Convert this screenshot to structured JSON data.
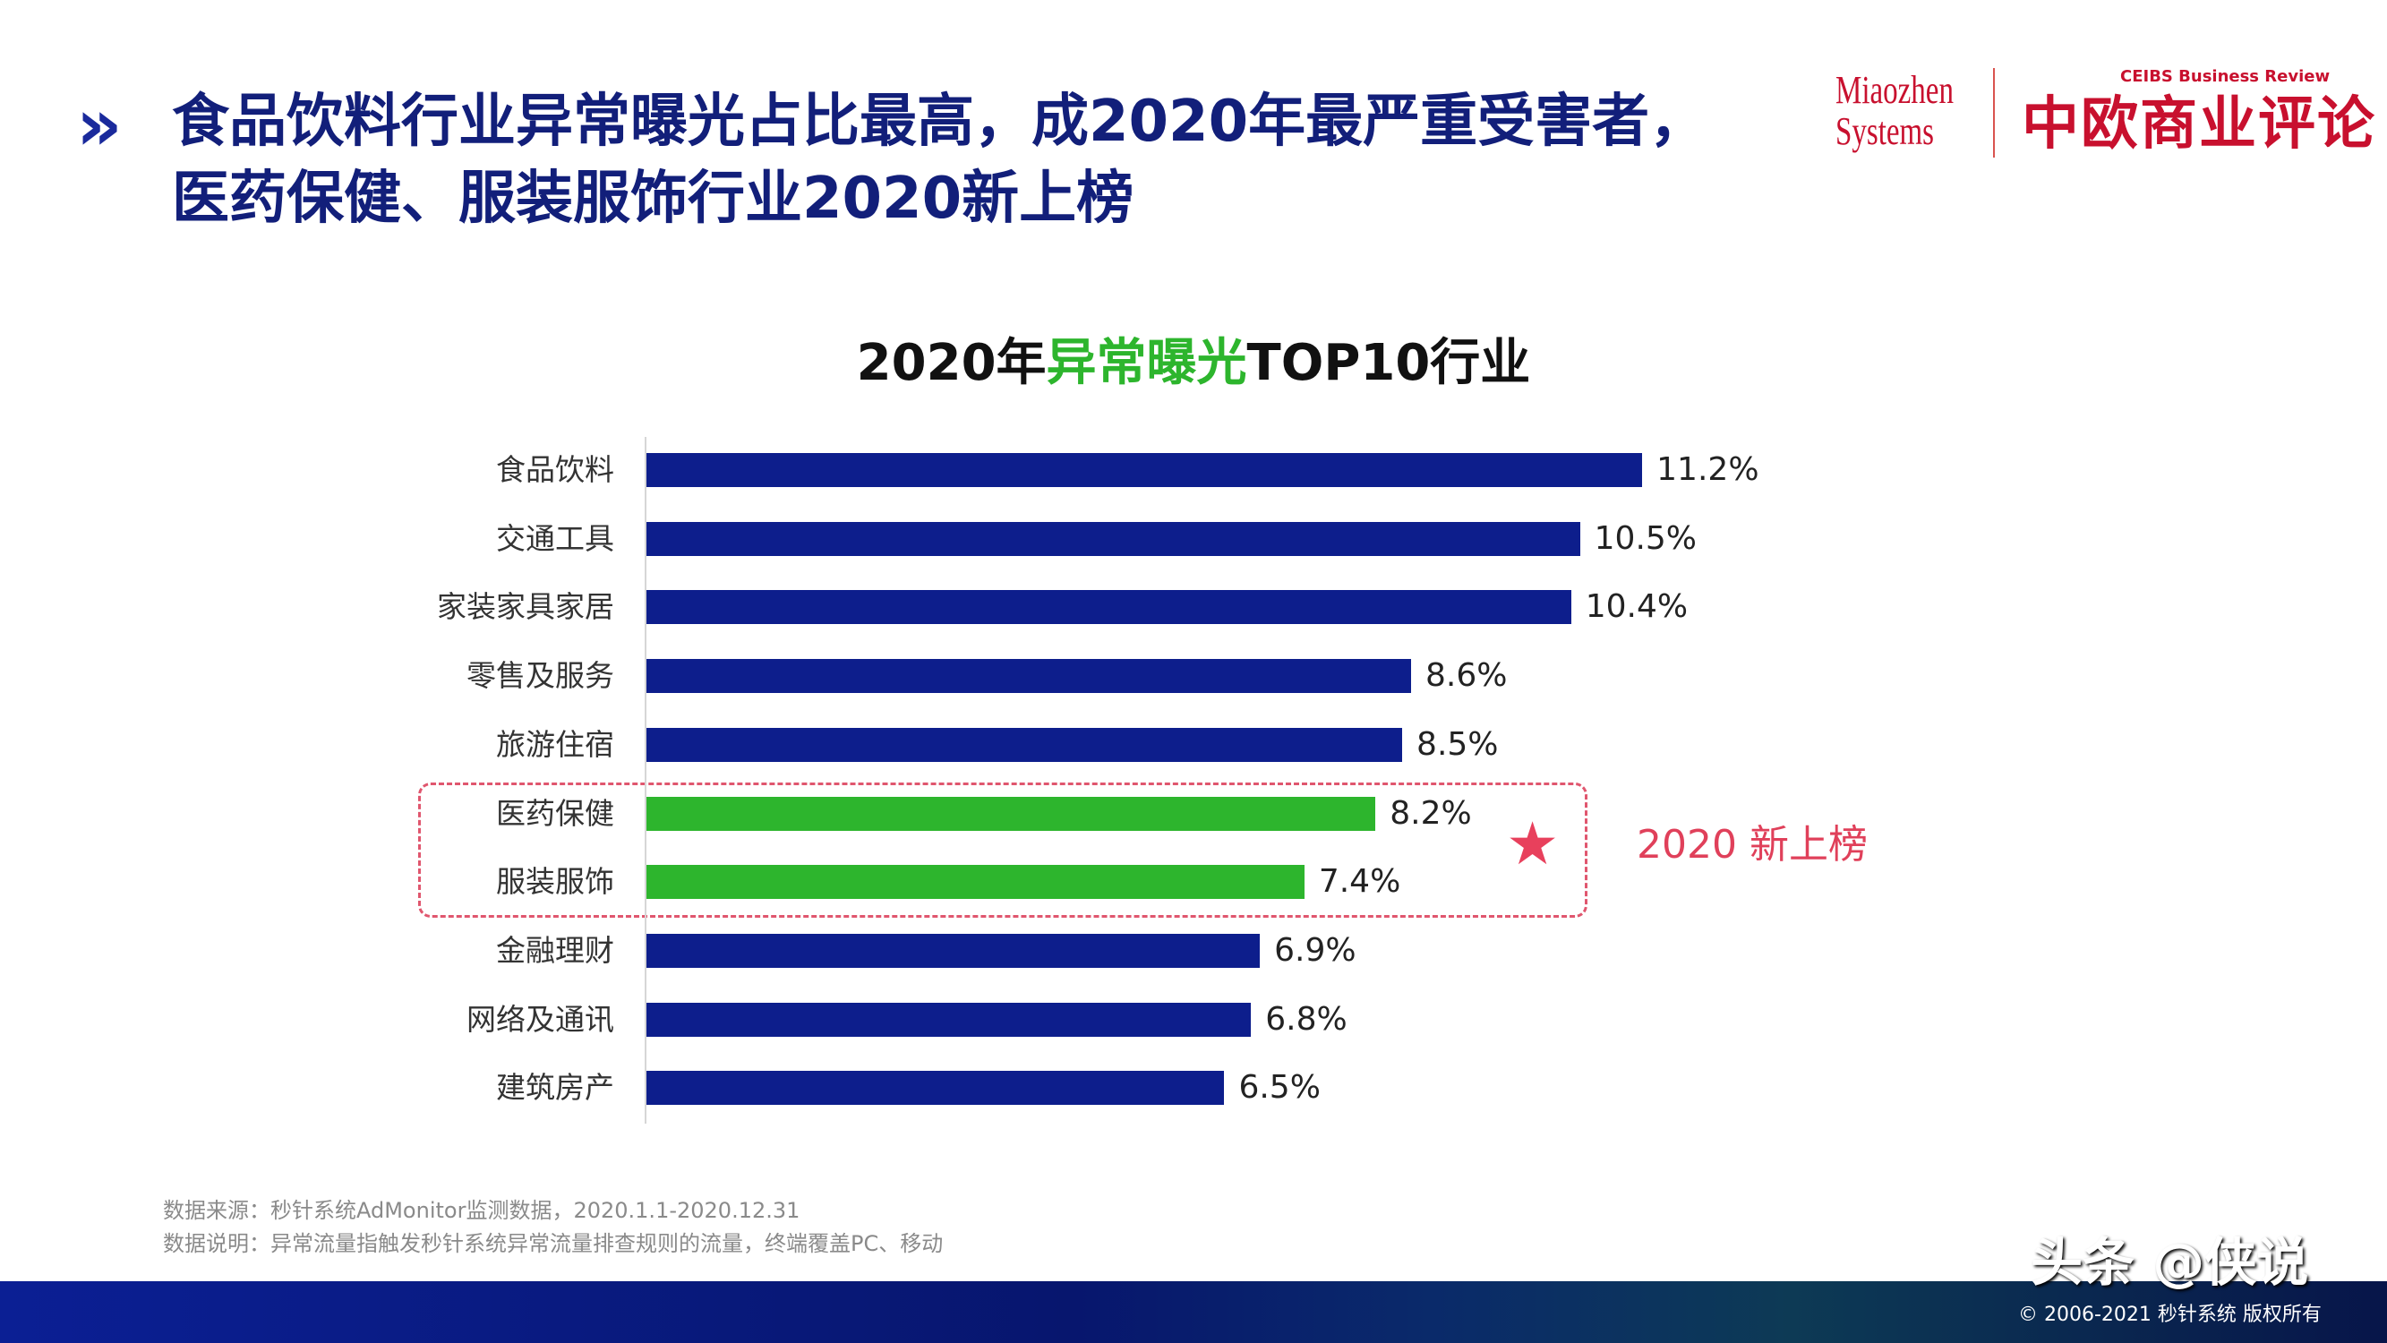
{
  "header": {
    "icon": "double-chevron-right-icon",
    "title_line1": "食品饮料行业异常曝光占比最高，成2020年最严重受害者，",
    "title_line2": "医药保健、服装服饰行业2020新上榜"
  },
  "logos": {
    "miaozhen_line1": "Miaozhen",
    "miaozhen_line2": "Systems",
    "ceibs_en": "CEIBS Business Review",
    "ceibs_cn": "中欧商业评论"
  },
  "chart_data": {
    "type": "bar",
    "orientation": "horizontal",
    "title_parts": [
      "2020年",
      "异常曝光",
      "TOP10行业"
    ],
    "categories": [
      "食品饮料",
      "交通工具",
      "家装家具家居",
      "零售及服务",
      "旅游住宿",
      "医药保健",
      "服装服饰",
      "金融理财",
      "网络及通讯",
      "建筑房产"
    ],
    "values": [
      11.2,
      10.5,
      10.4,
      8.6,
      8.5,
      8.2,
      7.4,
      6.9,
      6.8,
      6.5
    ],
    "labels": [
      "11.2%",
      "10.5%",
      "10.4%",
      "8.6%",
      "8.5%",
      "8.2%",
      "7.4%",
      "6.9%",
      "6.8%",
      "6.5%"
    ],
    "highlight": [
      false,
      false,
      false,
      false,
      false,
      true,
      true,
      false,
      false,
      false
    ],
    "unit": "%",
    "grid": false,
    "colors": {
      "default": "#0d1e8c",
      "highlight": "#2db52d",
      "annotation": "#e0405a"
    },
    "annotation": {
      "icon": "star-icon",
      "text": "2020 新上榜"
    }
  },
  "footnotes": [
    "数据来源：秒针系统AdMonitor监测数据，2020.1.1-2020.12.31",
    "数据说明：异常流量指触发秒针系统异常流量排查规则的流量，终端覆盖PC、移动"
  ],
  "watermark": "头条 @侠说",
  "copyright": "© 2006-2021 秒针系统 版权所有"
}
